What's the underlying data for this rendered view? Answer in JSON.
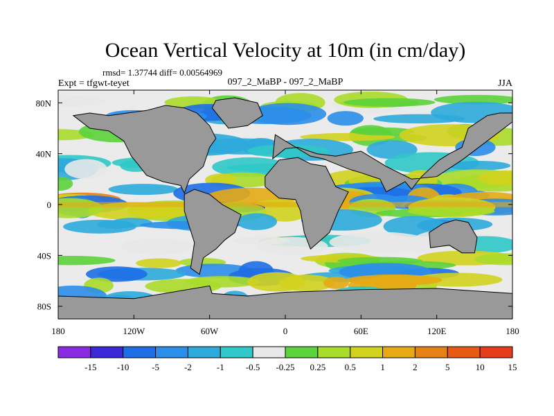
{
  "chart_data": {
    "type": "heatmap",
    "title": "Ocean Vertical Velocity at 10m (in cm/day)",
    "stats": "rmsd= 1.37744  diff= 0.00564969",
    "experiment_label": "Expt = tfgwt-teyet",
    "case_label": "097_2_MaBP - 097_2_MaBP",
    "season": "JJA",
    "xlim": [
      -180,
      180
    ],
    "ylim": [
      -90,
      90
    ],
    "x_ticks": [
      {
        "value": -180,
        "label": "180"
      },
      {
        "value": -120,
        "label": "120W"
      },
      {
        "value": -60,
        "label": "60W"
      },
      {
        "value": 0,
        "label": "0"
      },
      {
        "value": 60,
        "label": "60E"
      },
      {
        "value": 120,
        "label": "120E"
      },
      {
        "value": 180,
        "label": "180"
      }
    ],
    "y_ticks": [
      {
        "value": 80,
        "label": "80N"
      },
      {
        "value": 40,
        "label": "40N"
      },
      {
        "value": 0,
        "label": "0"
      },
      {
        "value": -40,
        "label": "40S"
      },
      {
        "value": -80,
        "label": "80S"
      }
    ],
    "colorbar": {
      "colors": [
        "#8a2be2",
        "#3c28d6",
        "#1e6ee6",
        "#2b8ee8",
        "#2eaadc",
        "#30c8c8",
        "#e8e8e8",
        "#5cd23c",
        "#aadc2a",
        "#d2d21e",
        "#e6aa14",
        "#e68214",
        "#e65a14",
        "#e63c1e"
      ],
      "labels": [
        "-15",
        "-10",
        "-5",
        "-2",
        "-1",
        "-0.5",
        "-0.25",
        "0.25",
        "0.5",
        "1",
        "2",
        "5",
        "10",
        "15"
      ]
    },
    "land_color": "#999999",
    "land_regions": [
      {
        "name": "North America",
        "lon": [
          -168,
          -155,
          -140,
          -128,
          -122,
          -117,
          -110,
          -97,
          -83,
          -80,
          -76,
          -65,
          -60,
          -55,
          -60,
          -70,
          -80,
          -95,
          -110,
          -125,
          -140,
          -155,
          -168
        ],
        "lat": [
          70,
          60,
          58,
          50,
          38,
          32,
          23,
          18,
          15,
          9,
          20,
          30,
          45,
          52,
          62,
          72,
          76,
          78,
          74,
          72,
          70,
          72,
          70
        ]
      },
      {
        "name": "Greenland",
        "lon": [
          -55,
          -40,
          -22,
          -18,
          -30,
          -45,
          -58
        ],
        "lat": [
          82,
          84,
          80,
          70,
          62,
          60,
          76
        ]
      },
      {
        "name": "South America",
        "lon": [
          -80,
          -72,
          -60,
          -50,
          -35,
          -40,
          -48,
          -55,
          -65,
          -68,
          -75,
          -72,
          -80
        ],
        "lat": [
          8,
          12,
          8,
          0,
          -8,
          -22,
          -28,
          -35,
          -42,
          -55,
          -50,
          -30,
          -5
        ]
      },
      {
        "name": "Europe-Asia",
        "lon": [
          -10,
          0,
          10,
          25,
          40,
          60,
          80,
          100,
          120,
          140,
          160,
          180,
          180,
          170,
          160,
          145,
          140,
          130,
          122,
          108,
          100,
          95,
          80,
          75,
          60,
          50,
          40,
          30,
          20,
          10,
          0,
          -8
        ],
        "lat": [
          36,
          44,
          45,
          40,
          38,
          42,
          30,
          20,
          22,
          35,
          50,
          65,
          72,
          72,
          70,
          60,
          45,
          40,
          35,
          22,
          12,
          18,
          10,
          20,
          25,
          28,
          32,
          36,
          38,
          44,
          50,
          55
        ]
      },
      {
        "name": "Africa",
        "lon": [
          -16,
          -5,
          10,
          20,
          32,
          40,
          50,
          42,
          35,
          20,
          15,
          12,
          8,
          -5,
          -16
        ],
        "lat": [
          22,
          35,
          37,
          32,
          30,
          14,
          10,
          -5,
          -22,
          -35,
          -22,
          -5,
          4,
          5,
          14
        ]
      },
      {
        "name": "Australia",
        "lon": [
          114,
          125,
          135,
          145,
          152,
          150,
          140,
          130,
          115
        ],
        "lat": [
          -22,
          -15,
          -12,
          -14,
          -26,
          -38,
          -38,
          -32,
          -34
        ]
      },
      {
        "name": "Antarctica",
        "lon": [
          -180,
          -120,
          -60,
          -58,
          -30,
          0,
          60,
          120,
          180,
          180,
          -180
        ],
        "lat": [
          -72,
          -74,
          -64,
          -70,
          -72,
          -69,
          -67,
          -66,
          -70,
          -90,
          -90
        ]
      }
    ]
  }
}
